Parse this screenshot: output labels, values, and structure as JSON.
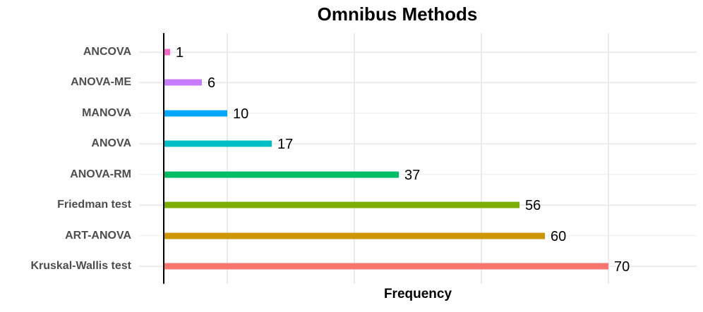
{
  "chart_data": {
    "type": "bar",
    "orientation": "horizontal",
    "title": "Omnibus Methods",
    "xlabel": "Frequency",
    "ylabel": "",
    "categories": [
      "ANCOVA",
      "ANOVA-ME",
      "MANOVA",
      "ANOVA",
      "ANOVA-RM",
      "Friedman test",
      "ART-ANOVA",
      "Kruskal-Wallis test"
    ],
    "values": [
      1,
      6,
      10,
      17,
      37,
      56,
      60,
      70
    ],
    "data_labels": [
      "1",
      "6",
      "10",
      "17",
      "37",
      "56",
      "60",
      "70"
    ],
    "bar_colors": [
      "#FF61CC",
      "#C77CFF",
      "#00A9FF",
      "#00BFC4",
      "#00BE67",
      "#7CAE00",
      "#CD9600",
      "#F8766D"
    ],
    "grid_x_values": [
      10,
      30,
      50,
      70
    ],
    "xlim": [
      0,
      84
    ],
    "legend": "none",
    "grid": "light horizontal line per category, vertical lines at 10/30/50/70",
    "colors": {
      "background": "#ffffff",
      "gridline": "#ebebeb",
      "axis_line": "#000000",
      "category_label": "#4d4d4d",
      "value_label": "#000000",
      "title": "#000000"
    }
  }
}
